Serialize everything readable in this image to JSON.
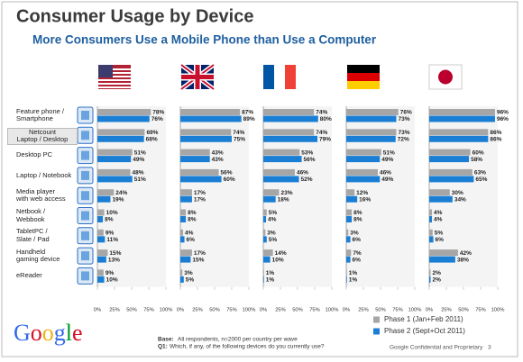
{
  "title": "Consumer Usage by Device",
  "subtitle": "More Consumers Use a Mobile Phone than Use a Computer",
  "chart_data": [
    {
      "type": "bar",
      "orientation": "horizontal",
      "categories": [
        "Feature phone /\nSmartphone",
        "Netcount\nLaptop / Desktop",
        "Desktop PC",
        "Laptop / Notebook",
        "Media player\nwith web access",
        "Netbook /\nWebbook",
        "TabletPC /\nSlate / Pad",
        "Handheld\ngaming device",
        "eReader"
      ],
      "series": [
        {
          "name": "Phase 1 (Jan+Feb 2011)",
          "color": "#a6a6a6",
          "values": [
            78,
            69,
            51,
            48,
            24,
            10,
            9,
            15,
            9
          ],
          "value_labels": [
            "78%",
            "69%",
            "51%",
            "48%",
            "24%",
            "10%",
            "9%",
            "15%",
            "9%"
          ]
        },
        {
          "name": "Phase 2 (Sept+Oct 2011)",
          "color": "#1a7fd4",
          "values": [
            76,
            68,
            49,
            51,
            19,
            8,
            11,
            13,
            10
          ],
          "value_labels": [
            "76%",
            "68%",
            "49%",
            "51%",
            "19%",
            "8%",
            "11%",
            "13%",
            "10%"
          ]
        }
      ],
      "xlim": [
        0,
        100
      ],
      "xticks": [
        {
          "value": 0,
          "label": "0%"
        },
        {
          "value": 25,
          "label": "25%"
        },
        {
          "value": 50,
          "label": "50%"
        },
        {
          "value": 75,
          "label": "75%"
        },
        {
          "value": 100,
          "label": "100%"
        }
      ]
    },
    {
      "type": "bar",
      "orientation": "horizontal",
      "series": [
        {
          "color": "#a6a6a6",
          "values": [
            87,
            74,
            43,
            56,
            17,
            8,
            4,
            17,
            3
          ],
          "value_labels": [
            "87%",
            "74%",
            "43%",
            "56%",
            "17%",
            "8%",
            "4%",
            "17%",
            "3%"
          ]
        },
        {
          "color": "#1a7fd4",
          "values": [
            89,
            75,
            43,
            60,
            17,
            8,
            6,
            15,
            5
          ],
          "value_labels": [
            "89%",
            "75%",
            "43%",
            "60%",
            "17%",
            "8%",
            "6%",
            "15%",
            "5%"
          ]
        }
      ],
      "xlim": [
        0,
        100
      ],
      "xticks": [
        {
          "value": 0,
          "label": "0%"
        },
        {
          "value": 25,
          "label": "25%"
        },
        {
          "value": 50,
          "label": "50%"
        },
        {
          "value": 75,
          "label": "75%"
        },
        {
          "value": 100,
          "label": "100%"
        }
      ]
    },
    {
      "type": "bar",
      "orientation": "horizontal",
      "series": [
        {
          "color": "#a6a6a6",
          "values": [
            74,
            74,
            53,
            46,
            23,
            5,
            3,
            14,
            1
          ],
          "value_labels": [
            "74%",
            "74%",
            "53%",
            "46%",
            "23%",
            "5%",
            "3%",
            "14%",
            "1%"
          ]
        },
        {
          "color": "#1a7fd4",
          "values": [
            80,
            79,
            56,
            52,
            18,
            4,
            5,
            10,
            1
          ],
          "value_labels": [
            "80%",
            "79%",
            "56%",
            "52%",
            "18%",
            "4%",
            "5%",
            "10%",
            "1%"
          ]
        }
      ],
      "xlim": [
        0,
        100
      ],
      "xticks": [
        {
          "value": 0,
          "label": "0%"
        },
        {
          "value": 25,
          "label": "25%"
        },
        {
          "value": 50,
          "label": "50%"
        },
        {
          "value": 75,
          "label": "75%"
        },
        {
          "value": 100,
          "label": "100%"
        }
      ]
    },
    {
      "type": "bar",
      "orientation": "horizontal",
      "series": [
        {
          "color": "#a6a6a6",
          "values": [
            76,
            73,
            51,
            46,
            12,
            8,
            3,
            7,
            1
          ],
          "value_labels": [
            "76%",
            "73%",
            "51%",
            "46%",
            "12%",
            "8%",
            "3%",
            "7%",
            "1%"
          ]
        },
        {
          "color": "#1a7fd4",
          "values": [
            73,
            72,
            49,
            49,
            16,
            8,
            6,
            6,
            1
          ],
          "value_labels": [
            "73%",
            "72%",
            "49%",
            "49%",
            "16%",
            "8%",
            "6%",
            "6%",
            "1%"
          ]
        }
      ],
      "xlim": [
        0,
        100
      ],
      "xticks": [
        {
          "value": 0,
          "label": "0%"
        },
        {
          "value": 25,
          "label": "25%"
        },
        {
          "value": 50,
          "label": "50%"
        },
        {
          "value": 75,
          "label": "75%"
        },
        {
          "value": 100,
          "label": "100%"
        }
      ]
    },
    {
      "type": "bar",
      "orientation": "horizontal",
      "series": [
        {
          "color": "#a6a6a6",
          "values": [
            96,
            86,
            60,
            63,
            30,
            4,
            5,
            42,
            2
          ],
          "value_labels": [
            "96%",
            "86%",
            "60%",
            "63%",
            "30%",
            "4%",
            "5%",
            "42%",
            "2%"
          ]
        },
        {
          "color": "#1a7fd4",
          "values": [
            96,
            86,
            58,
            65,
            34,
            4,
            6,
            38,
            2
          ],
          "value_labels": [
            "96%",
            "86%",
            "58%",
            "65%",
            "34%",
            "4%",
            "6%",
            "38%",
            "2%"
          ]
        }
      ],
      "xlim": [
        0,
        100
      ],
      "xticks": [
        {
          "value": 0,
          "label": "0%"
        },
        {
          "value": 25,
          "label": "25%"
        },
        {
          "value": 50,
          "label": "50%"
        },
        {
          "value": 75,
          "label": "75%"
        },
        {
          "value": 100,
          "label": "100%"
        }
      ]
    }
  ],
  "footer": {
    "logo": "Google",
    "base_label": "Base:",
    "base_text": "All respondents, n=2000 per country per wave",
    "q_label": "Q1:",
    "q_text": "Which, if any, of the following devices do you currently use?",
    "confidential": "Google Confidential and Proprietary",
    "page": "3"
  }
}
